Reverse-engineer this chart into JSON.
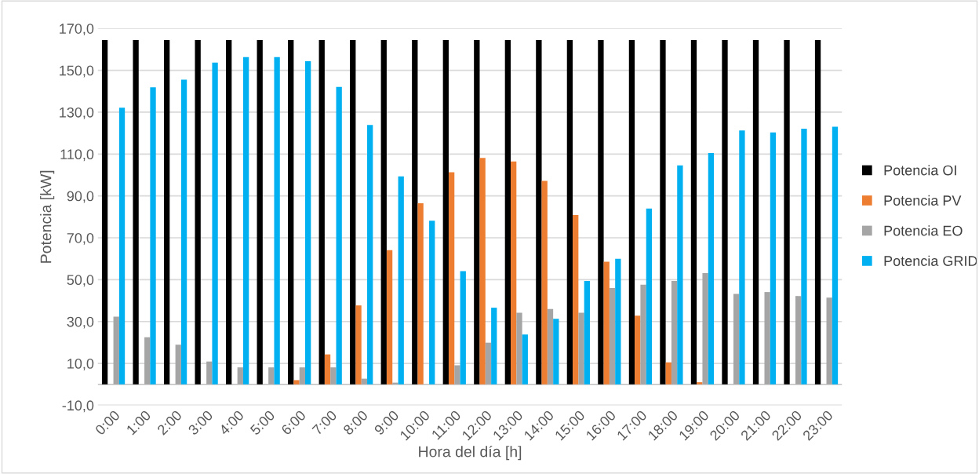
{
  "chart_data": {
    "type": "bar",
    "xlabel": "Hora del día [h]",
    "ylabel": "Potencia [kW]",
    "categories": [
      "0:00",
      "1:00",
      "2:00",
      "3:00",
      "4:00",
      "5:00",
      "6:00",
      "7:00",
      "8:00",
      "9:00",
      "10:00",
      "11:00",
      "12:00",
      "13:00",
      "14:00",
      "15:00",
      "16:00",
      "17:00",
      "18:00",
      "19:00",
      "20:00",
      "21:00",
      "22:00",
      "23:00"
    ],
    "series": [
      {
        "name": "Potencia OI",
        "color": "#000000",
        "values": [
          164.5,
          164.5,
          164.5,
          164.5,
          164.5,
          164.5,
          164.5,
          164.5,
          164.5,
          164.5,
          164.5,
          164.5,
          164.5,
          164.5,
          164.5,
          164.5,
          164.5,
          164.5,
          164.5,
          164.5,
          164.5,
          164.5,
          164.5,
          164.5
        ]
      },
      {
        "name": "Potencia PV",
        "color": "#ed7d31",
        "values": [
          0,
          0,
          0,
          0,
          0,
          0,
          2.0,
          14.3,
          37.7,
          64.1,
          86.5,
          101.3,
          108.1,
          106.5,
          97.2,
          80.9,
          58.6,
          32.8,
          10.5,
          1.0,
          0,
          0,
          0,
          0
        ]
      },
      {
        "name": "Potencia EO",
        "color": "#a5a5a5",
        "values": [
          32.3,
          22.5,
          18.9,
          10.9,
          8.1,
          8.1,
          8.1,
          8.1,
          2.7,
          0.8,
          0,
          9.1,
          19.9,
          34.2,
          36.0,
          34.2,
          46.0,
          47.6,
          49.4,
          53.1,
          43.2,
          44.1,
          42.2,
          41.4
        ]
      },
      {
        "name": "Potencia GRID",
        "color": "#00b0f0",
        "values": [
          132.1,
          141.9,
          145.5,
          153.7,
          156.3,
          156.3,
          154.3,
          142.1,
          123.9,
          99.3,
          78.2,
          54.1,
          36.6,
          23.8,
          31.3,
          49.4,
          60.0,
          84.0,
          104.6,
          110.5,
          121.3,
          120.3,
          122.1,
          123.0
        ]
      }
    ],
    "ylim": [
      -10,
      170
    ],
    "yticks": [
      {
        "value": -10,
        "label": "-10,0"
      },
      {
        "value": 10,
        "label": "10,0"
      },
      {
        "value": 30,
        "label": "30,0"
      },
      {
        "value": 50,
        "label": "50,0"
      },
      {
        "value": 70,
        "label": "70,0"
      },
      {
        "value": 90,
        "label": "90,0"
      },
      {
        "value": 110,
        "label": "110,0"
      },
      {
        "value": 130,
        "label": "130,0"
      },
      {
        "value": 150,
        "label": "150,0"
      },
      {
        "value": 170,
        "label": "170,0"
      }
    ],
    "grid": "y",
    "legend": "right"
  }
}
